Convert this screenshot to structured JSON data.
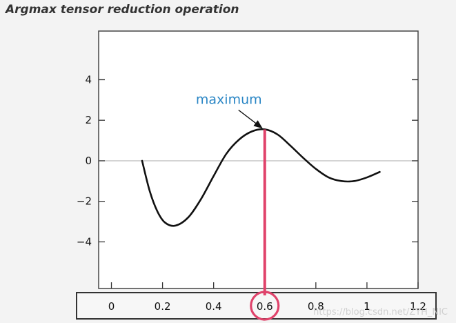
{
  "title": "Argmax tensor reduction operation",
  "watermark": "https://blog.csdn.net/ZYH_NIC",
  "colors": {
    "background": "#f3f3f3",
    "plot_background": "#ffffff",
    "curve": "#111111",
    "highlight": "#e0436b",
    "annotation": "#2a86c5",
    "zero_line": "#bbbbbb"
  },
  "chart_data": {
    "type": "line",
    "title": "Argmax tensor reduction operation",
    "xlim": [
      -0.05,
      1.2
    ],
    "ylim": [
      -6.3,
      6.4
    ],
    "x_ticks": [
      0,
      0.2,
      0.4,
      0.6,
      0.8,
      1,
      1.2
    ],
    "x_tick_labels": [
      "0",
      "0.2",
      "0.4",
      "0.6",
      "0.8",
      "1",
      "1.2"
    ],
    "y_ticks": [
      -4,
      -2,
      0,
      2,
      4
    ],
    "y_tick_labels": [
      "−4",
      "−2",
      "0",
      "2",
      "4"
    ],
    "grid": false,
    "zero_line": true,
    "series": [
      {
        "x": [
          0.12,
          0.15,
          0.18,
          0.21,
          0.25,
          0.3,
          0.35,
          0.4,
          0.45,
          0.5,
          0.55,
          0.6,
          0.65,
          0.7,
          0.75,
          0.8,
          0.85,
          0.9,
          0.95,
          1.0,
          1.05
        ],
        "values": [
          0,
          -1.5,
          -2.5,
          -3.05,
          -3.2,
          -2.8,
          -1.9,
          -0.75,
          0.35,
          1.05,
          1.45,
          1.55,
          1.3,
          0.75,
          0.15,
          -0.4,
          -0.82,
          -1.0,
          -1.0,
          -0.82,
          -0.55
        ]
      }
    ],
    "annotations": [
      {
        "text": "maximum",
        "x": 0.6,
        "y": 1.55
      }
    ],
    "highlight_x": 0.6,
    "highlight_x_label": "0.6"
  }
}
